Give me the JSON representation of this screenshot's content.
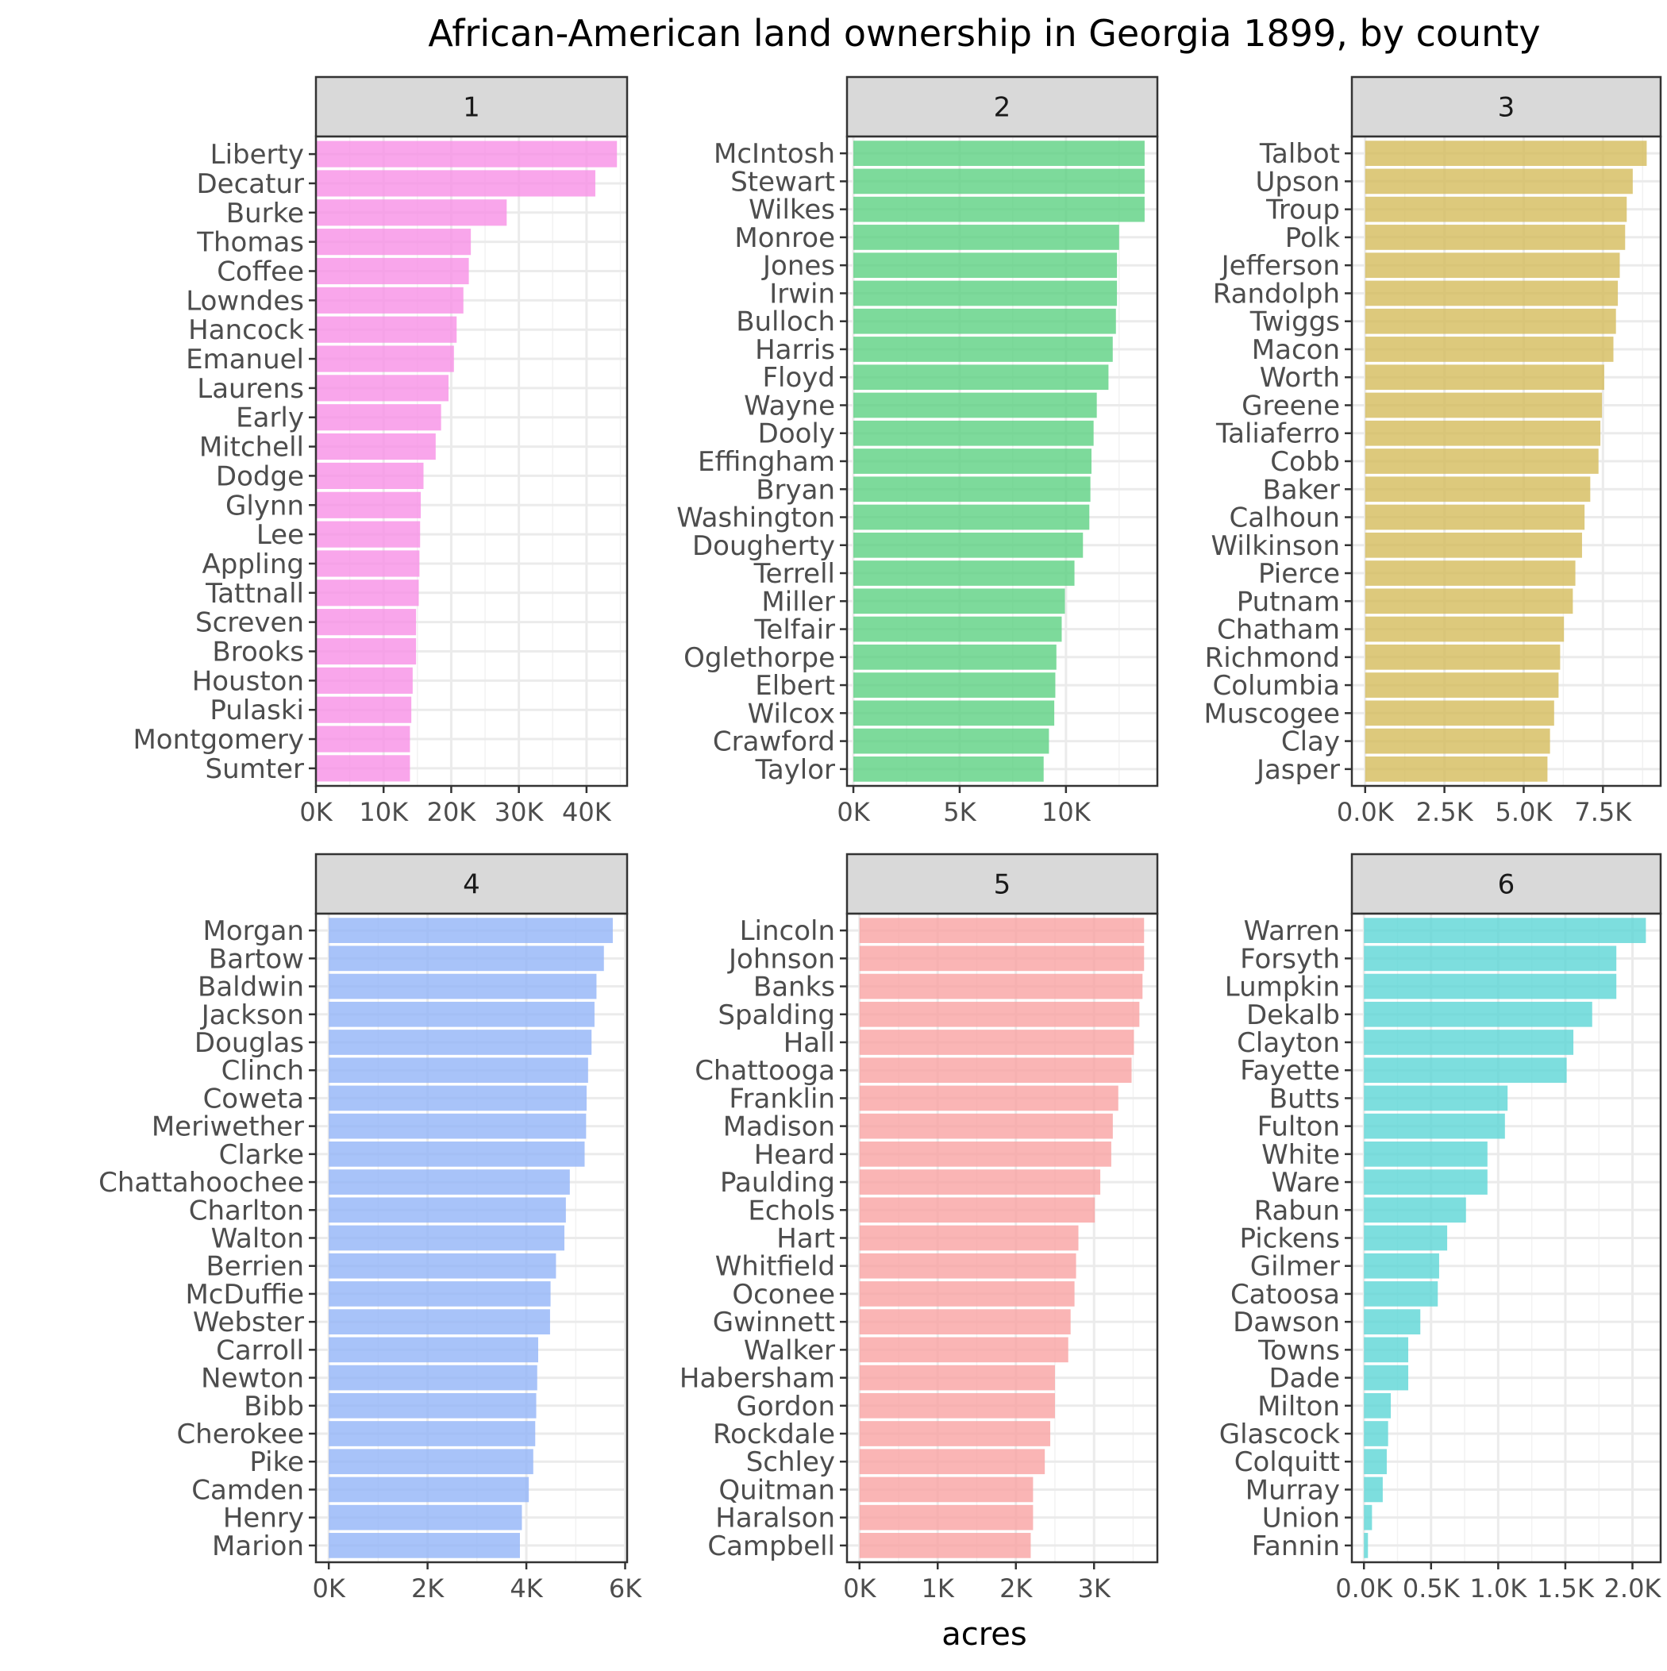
{
  "title": "African-American land ownership in Georgia 1899, by county",
  "xlabel": "acres",
  "chart_data": [
    {
      "type": "bar",
      "facet": "1",
      "color": "#F78DE6",
      "xlim": [
        0,
        46000
      ],
      "ticks": [
        0,
        10000,
        20000,
        30000,
        40000
      ],
      "tick_labels": [
        "0K",
        "10K",
        "20K",
        "30K",
        "40K"
      ],
      "categories": [
        "Liberty",
        "Decatur",
        "Burke",
        "Thomas",
        "Coffee",
        "Lowndes",
        "Hancock",
        "Emanuel",
        "Laurens",
        "Early",
        "Mitchell",
        "Dodge",
        "Glynn",
        "Lee",
        "Appling",
        "Tattnall",
        "Screven",
        "Brooks",
        "Houston",
        "Pulaski",
        "Montgomery",
        "Sumter"
      ],
      "values": [
        44500,
        41300,
        28200,
        22900,
        22600,
        21800,
        20800,
        20400,
        19600,
        18500,
        17700,
        15900,
        15500,
        15400,
        15300,
        15200,
        14800,
        14800,
        14300,
        14100,
        13900,
        13900
      ]
    },
    {
      "type": "bar",
      "facet": "2",
      "color": "#59CF7F",
      "xlim": [
        -300,
        14300
      ],
      "ticks": [
        0,
        5000,
        10000
      ],
      "tick_labels": [
        "0K",
        "5K",
        "10K"
      ],
      "categories": [
        "McIntosh",
        "Stewart",
        "Wilkes",
        "Monroe",
        "Jones",
        "Irwin",
        "Bulloch",
        "Harris",
        "Floyd",
        "Wayne",
        "Dooly",
        "Effingham",
        "Bryan",
        "Washington",
        "Dougherty",
        "Terrell",
        "Miller",
        "Telfair",
        "Oglethorpe",
        "Elbert",
        "Wilcox",
        "Crawford",
        "Taylor"
      ],
      "values": [
        13700,
        13700,
        13700,
        12500,
        12400,
        12400,
        12350,
        12200,
        12000,
        11450,
        11300,
        11200,
        11150,
        11100,
        10800,
        10400,
        9950,
        9800,
        9550,
        9500,
        9450,
        9200,
        8950
      ]
    },
    {
      "type": "bar",
      "facet": "3",
      "color": "#D4BA57",
      "xlim": [
        -420,
        9320
      ],
      "ticks": [
        0,
        2500,
        5000,
        7500
      ],
      "tick_labels": [
        "0.0K",
        "2.5K",
        "5.0K",
        "7.5K"
      ],
      "categories": [
        "Talbot",
        "Upson",
        "Troup",
        "Polk",
        "Jefferson",
        "Randolph",
        "Twiggs",
        "Macon",
        "Worth",
        "Greene",
        "Taliaferro",
        "Cobb",
        "Baker",
        "Calhoun",
        "Wilkinson",
        "Pierce",
        "Putnam",
        "Chatham",
        "Richmond",
        "Columbia",
        "Muscogee",
        "Clay",
        "Jasper"
      ],
      "values": [
        8880,
        8440,
        8250,
        8200,
        8030,
        7970,
        7910,
        7830,
        7540,
        7470,
        7420,
        7360,
        7100,
        6920,
        6840,
        6630,
        6550,
        6270,
        6150,
        6100,
        5960,
        5830,
        5750
      ]
    },
    {
      "type": "bar",
      "facet": "4",
      "color": "#8FB2F7",
      "xlim": [
        -260,
        6040
      ],
      "ticks": [
        0,
        2000,
        4000,
        6000
      ],
      "tick_labels": [
        "0K",
        "2K",
        "4K",
        "6K"
      ],
      "categories": [
        "Morgan",
        "Bartow",
        "Baldwin",
        "Jackson",
        "Douglas",
        "Clinch",
        "Coweta",
        "Meriwether",
        "Clarke",
        "Chattahoochee",
        "Charlton",
        "Walton",
        "Berrien",
        "McDuffie",
        "Webster",
        "Carroll",
        "Newton",
        "Bibb",
        "Cherokee",
        "Pike",
        "Camden",
        "Henry",
        "Marion"
      ],
      "values": [
        5750,
        5570,
        5420,
        5380,
        5320,
        5250,
        5220,
        5210,
        5180,
        4880,
        4800,
        4770,
        4600,
        4490,
        4480,
        4240,
        4220,
        4200,
        4180,
        4140,
        4050,
        3910,
        3870
      ]
    },
    {
      "type": "bar",
      "facet": "5",
      "color": "#F8A0A0",
      "xlim": [
        -160,
        3810
      ],
      "ticks": [
        0,
        1000,
        2000,
        3000
      ],
      "tick_labels": [
        "0K",
        "1K",
        "2K",
        "3K"
      ],
      "categories": [
        "Lincoln",
        "Johnson",
        "Banks",
        "Spalding",
        "Hall",
        "Chattooga",
        "Franklin",
        "Madison",
        "Heard",
        "Paulding",
        "Echols",
        "Hart",
        "Whitfield",
        "Oconee",
        "Gwinnett",
        "Walker",
        "Habersham",
        "Gordon",
        "Rockdale",
        "Schley",
        "Quitman",
        "Haralson",
        "Campbell"
      ],
      "values": [
        3640,
        3640,
        3620,
        3580,
        3510,
        3480,
        3310,
        3240,
        3220,
        3080,
        3010,
        2800,
        2770,
        2750,
        2700,
        2670,
        2500,
        2500,
        2440,
        2370,
        2220,
        2220,
        2190
      ]
    },
    {
      "type": "bar",
      "facet": "6",
      "color": "#59D5D5",
      "xlim": [
        -90,
        2210
      ],
      "ticks": [
        0,
        500,
        1000,
        1500,
        2000
      ],
      "tick_labels": [
        "0.0K",
        "0.5K",
        "1.0K",
        "1.5K",
        "2.0K"
      ],
      "categories": [
        "Warren",
        "Forsyth",
        "Lumpkin",
        "Dekalb",
        "Clayton",
        "Fayette",
        "Butts",
        "Fulton",
        "White",
        "Ware",
        "Rabun",
        "Pickens",
        "Gilmer",
        "Catoosa",
        "Dawson",
        "Towns",
        "Dade",
        "Milton",
        "Glascock",
        "Colquitt",
        "Murray",
        "Union",
        "Fannin"
      ],
      "values": [
        2100,
        1880,
        1880,
        1700,
        1560,
        1510,
        1070,
        1050,
        920,
        920,
        760,
        620,
        560,
        550,
        420,
        330,
        330,
        200,
        180,
        170,
        140,
        60,
        30
      ]
    }
  ]
}
